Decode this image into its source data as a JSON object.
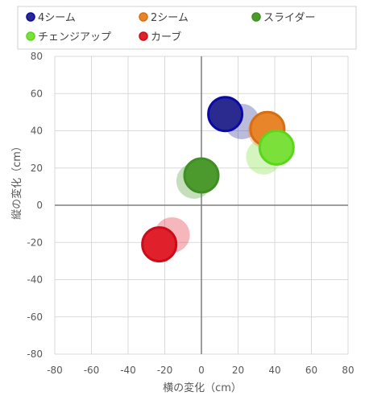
{
  "chart_data": {
    "type": "scatter",
    "title": "",
    "xlabel": "横の変化（cm）",
    "ylabel": "縦の変化（cm）",
    "xlim": [
      -80,
      80
    ],
    "ylim": [
      -80,
      80
    ],
    "xticks": [
      -80,
      -60,
      -40,
      -20,
      0,
      20,
      40,
      60,
      80
    ],
    "yticks": [
      80,
      60,
      40,
      20,
      0,
      -20,
      -40,
      -60,
      -80
    ],
    "grid": true,
    "legend_position": "top",
    "series": [
      {
        "name": "4シーム",
        "color": "#2b2b8f",
        "border": "#0a0aa8",
        "ghost": {
          "x": 22,
          "y": 45
        },
        "point": {
          "x": 13,
          "y": 49
        }
      },
      {
        "name": "2シーム",
        "color": "#e8852a",
        "border": "#d86e10",
        "ghost": {
          "x": 35,
          "y": 40
        },
        "point": {
          "x": 36,
          "y": 41
        }
      },
      {
        "name": "スライダー",
        "color": "#4c9a2e",
        "border": "#3f8f24",
        "ghost": {
          "x": -4,
          "y": 13
        },
        "point": {
          "x": 0,
          "y": 16
        }
      },
      {
        "name": "チェンジアップ",
        "color": "#7be03a",
        "border": "#5bd61a",
        "ghost": {
          "x": 34,
          "y": 26
        },
        "point": {
          "x": 41,
          "y": 31
        }
      },
      {
        "name": "カーブ",
        "color": "#e0202a",
        "border": "#cc0c1a",
        "ghost": {
          "x": -16,
          "y": -16
        },
        "point": {
          "x": -23,
          "y": -21
        }
      }
    ]
  }
}
